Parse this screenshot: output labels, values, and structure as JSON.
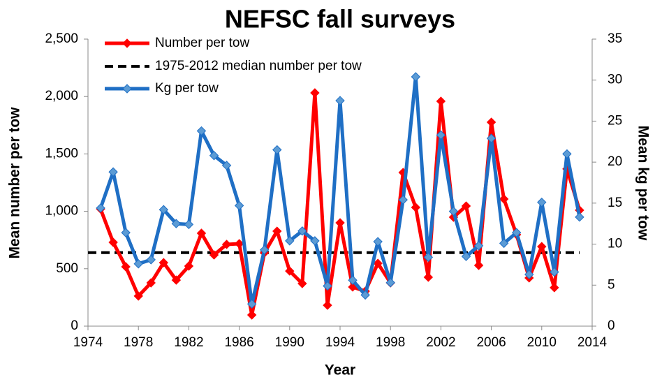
{
  "chart_data": {
    "type": "line",
    "title": "NEFSC fall surveys",
    "x_label": "Year",
    "y_label": "Mean number per tow",
    "y2_label": "Mean kg per tow",
    "x": [
      1975,
      1976,
      1977,
      1978,
      1979,
      1980,
      1981,
      1982,
      1983,
      1984,
      1985,
      1986,
      1987,
      1988,
      1989,
      1990,
      1991,
      1992,
      1993,
      1994,
      1995,
      1996,
      1997,
      1998,
      1999,
      2000,
      2001,
      2002,
      2003,
      2004,
      2005,
      2006,
      2007,
      2008,
      2009,
      2010,
      2011,
      2012,
      2013
    ],
    "xlim": [
      1974,
      2014
    ],
    "xticks": [
      1974,
      1978,
      1982,
      1986,
      1990,
      1994,
      1998,
      2002,
      2006,
      2010,
      2014
    ],
    "ylim": [
      0,
      2500
    ],
    "yticks": [
      0,
      500,
      {
        "value": 1000,
        "label": "1,000"
      },
      {
        "value": 1500,
        "label": "1,500"
      },
      {
        "value": 2000,
        "label": "2,000"
      },
      {
        "value": 2500,
        "label": "2,500"
      }
    ],
    "y2lim": [
      0,
      35
    ],
    "y2ticks": [
      0,
      5,
      10,
      15,
      20,
      25,
      30,
      35
    ],
    "series": [
      {
        "name": "Number per tow",
        "color": "#ff0000",
        "axis": "y",
        "values": [
          1020,
          730,
          517,
          262,
          377,
          553,
          401,
          523,
          809,
          620,
          712,
          718,
          97,
          639,
          827,
          480,
          371,
          2032,
          182,
          900,
          341,
          304,
          547,
          377,
          1338,
          1034,
          426,
          1959,
          949,
          1046,
          529,
          1776,
          1107,
          797,
          420,
          693,
          335,
          1369,
          1010
        ]
      },
      {
        "name": "Kg per tow",
        "color": "#1f6fc5",
        "axis": "y2",
        "values": [
          14.4,
          18.8,
          11.4,
          7.6,
          8.1,
          14.2,
          12.5,
          12.4,
          23.8,
          20.8,
          19.6,
          14.7,
          2.7,
          9.3,
          21.5,
          10.4,
          11.6,
          10.4,
          4.9,
          27.5,
          5.6,
          3.8,
          10.3,
          5.3,
          15.4,
          30.4,
          8.4,
          23.3,
          14.0,
          8.5,
          9.8,
          22.9,
          10.1,
          11.4,
          6.3,
          15.1,
          6.6,
          21.0,
          13.3
        ]
      }
    ],
    "reference_line": {
      "name": "1975-2012 median number per tow",
      "value": 640,
      "color": "#000000"
    }
  }
}
